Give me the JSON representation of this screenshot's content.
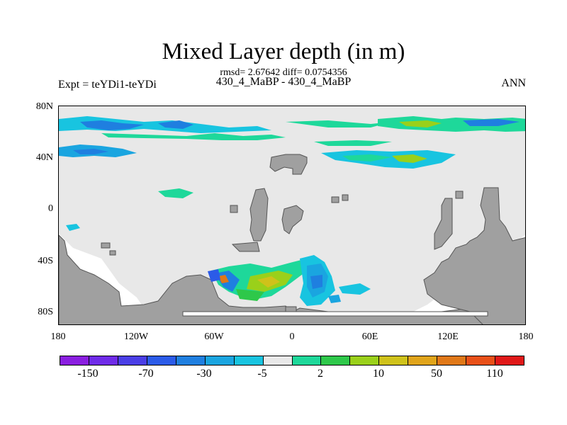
{
  "title": "Mixed Layer depth (in m)",
  "stats_line": "rmsd= 2.67642 diff= 0.0754356",
  "case_line": "430_4_MaBP - 430_4_MaBP",
  "left_label": "Expt = teYDi1-teYDi",
  "right_label": "ANN",
  "lat_labels": [
    "80N",
    "40N",
    "0",
    "40S",
    "80S"
  ],
  "lon_labels": [
    "180",
    "120W",
    "60W",
    "0",
    "60E",
    "120E",
    "180"
  ],
  "colorbar": {
    "colors": [
      "#8a1ee0",
      "#6f2be8",
      "#4a3ee6",
      "#2b5be8",
      "#1f7fe0",
      "#1aa5e0",
      "#18c4e0",
      "#e8e8e8",
      "#1ed89a",
      "#2ec84a",
      "#9ad01a",
      "#cfc21a",
      "#e0a41a",
      "#e07818",
      "#e85018",
      "#e01818"
    ],
    "labels": [
      "-150",
      "-70",
      "-30",
      "-5",
      "2",
      "10",
      "50",
      "110"
    ]
  },
  "icons": {
    "land": "gray-continent-mask"
  }
}
